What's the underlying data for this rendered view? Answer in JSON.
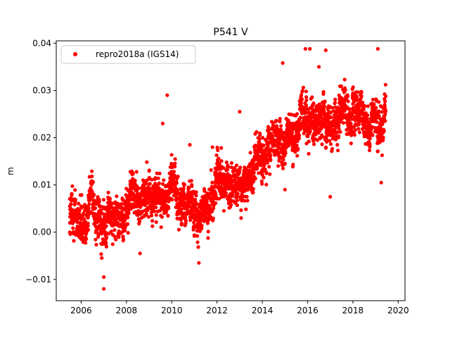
{
  "chart_data": {
    "type": "scatter",
    "title": "P541 V",
    "xlabel": "",
    "ylabel": "m",
    "xlim": [
      2004.9,
      2020.3
    ],
    "ylim": [
      -0.0145,
      0.0405
    ],
    "xticks": [
      2006,
      2008,
      2010,
      2012,
      2014,
      2016,
      2018,
      2020
    ],
    "xtick_labels": [
      "2006",
      "2008",
      "2010",
      "2012",
      "2014",
      "2016",
      "2018",
      "2020"
    ],
    "yticks": [
      -0.01,
      0.0,
      0.01,
      0.02,
      0.03,
      0.04
    ],
    "ytick_labels": [
      "−0.01",
      "0.00",
      "0.01",
      "0.02",
      "0.03",
      "0.04"
    ],
    "grid": false,
    "legend_position": "upper-left",
    "series": [
      {
        "name": "repro2018a (IGS14)",
        "color": "#ff0000",
        "marker": "circle",
        "x_range": [
          2005.5,
          2019.45
        ],
        "trend_x": [
          2005.5,
          2006.0,
          2007.0,
          2008.0,
          2009.0,
          2010.0,
          2011.0,
          2012.0,
          2013.0,
          2014.0,
          2015.0,
          2016.0,
          2017.0,
          2018.0,
          2019.0,
          2019.45
        ],
        "trend_y": [
          0.003,
          0.002,
          0.003,
          0.005,
          0.008,
          0.009,
          0.006,
          0.008,
          0.011,
          0.016,
          0.021,
          0.024,
          0.025,
          0.024,
          0.025,
          0.025
        ],
        "notable_points": [
          {
            "x": 2009.8,
            "y": 0.029
          },
          {
            "x": 2009.6,
            "y": 0.023
          },
          {
            "x": 2007.0,
            "y": -0.012
          },
          {
            "x": 2007.0,
            "y": -0.0095
          },
          {
            "x": 2011.2,
            "y": -0.0065
          },
          {
            "x": 2008.6,
            "y": -0.0045
          },
          {
            "x": 2015.9,
            "y": 0.0388
          },
          {
            "x": 2016.1,
            "y": 0.0388
          },
          {
            "x": 2016.8,
            "y": 0.0385
          },
          {
            "x": 2019.1,
            "y": 0.0388
          },
          {
            "x": 2016.5,
            "y": 0.035
          },
          {
            "x": 2014.9,
            "y": 0.0358
          },
          {
            "x": 2015.0,
            "y": 0.009
          },
          {
            "x": 2017.0,
            "y": 0.0075
          },
          {
            "x": 2019.25,
            "y": 0.0105
          },
          {
            "x": 2013.0,
            "y": 0.0255
          },
          {
            "x": 2011.8,
            "y": 0.018
          },
          {
            "x": 2010.8,
            "y": 0.0185
          },
          {
            "x": 2005.5,
            "y": 0.0055
          },
          {
            "x": 2005.5,
            "y": 0.0
          }
        ]
      }
    ]
  }
}
